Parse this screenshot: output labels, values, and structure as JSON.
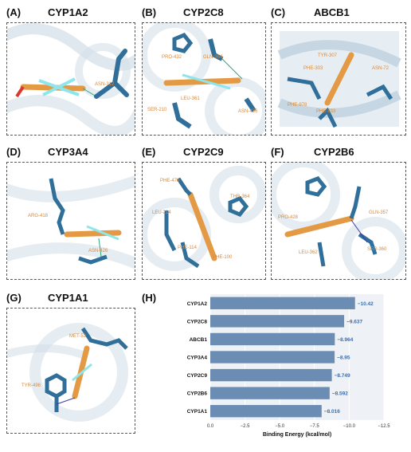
{
  "panels": [
    {
      "letter": "(A)",
      "title": "CYP1A2",
      "residues": [
        "ASN-312"
      ]
    },
    {
      "letter": "(B)",
      "title": "CYP2C8",
      "residues": [
        "PRO-432",
        "GLN-364",
        "LEU-361",
        "SER-210",
        "ASN-436"
      ]
    },
    {
      "letter": "(C)",
      "title": "ABCB1",
      "residues": [
        "TYR-307",
        "PHE-303",
        "PHE-978",
        "ASN-72",
        "PHE-833"
      ]
    },
    {
      "letter": "(D)",
      "title": "CYP3A4",
      "residues": [
        "ARG-418",
        "ASN-426"
      ]
    },
    {
      "letter": "(E)",
      "title": "CYP2C9",
      "residues": [
        "PHE-476",
        "THR-364",
        "LEU-214",
        "PHE-114",
        "PHE-100"
      ]
    },
    {
      "letter": "(F)",
      "title": "CYP2B6",
      "residues": [
        "PRO-428",
        "GLN-357",
        "LEU-362",
        "SER-360"
      ]
    },
    {
      "letter": "(G)",
      "title": "CYP1A1",
      "residues": [
        "MET-52",
        "TYR-498"
      ]
    }
  ],
  "chart_letter": "(H)",
  "chart_data": {
    "type": "bar",
    "orientation": "horizontal",
    "categories": [
      "CYP1A2",
      "CYP2C8",
      "ABCB1",
      "CYP3A4",
      "CYP2C9",
      "CYP2B6",
      "CYP1A1"
    ],
    "values": [
      -10.42,
      -9.637,
      -8.964,
      -8.95,
      -8.749,
      -8.592,
      -8.016
    ],
    "value_labels": [
      "−10.42",
      "−9.637",
      "−8.964",
      "−8.95",
      "−8.749",
      "−8.592",
      "−8.016"
    ],
    "xlabel": "Binding Energy (kcal/mol)",
    "xlim": [
      0,
      -12.5
    ],
    "xticks": [
      0,
      -2.5,
      -5,
      -7.5,
      -10,
      -12.5
    ],
    "xtick_labels": [
      "0.0",
      "−2.5",
      "−5.0",
      "−7.5",
      "−10.0",
      "−12.5"
    ],
    "grid": true,
    "bar_color": "#6b8cb3",
    "label_color": "#3b6fb0"
  }
}
